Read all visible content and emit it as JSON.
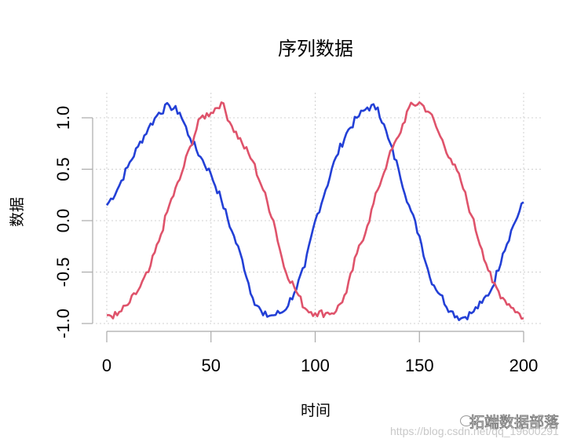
{
  "chart_data": {
    "type": "line",
    "title": "序列数据",
    "xlabel": "时间",
    "ylabel": "数据",
    "xlim": [
      0,
      200
    ],
    "ylim": [
      -1.0,
      1.2
    ],
    "x_ticks": [
      "0",
      "50",
      "100",
      "150",
      "200"
    ],
    "y_ticks": [
      "-1.0",
      "-0.5",
      "0.0",
      "0.5",
      "1.0"
    ],
    "grid": true,
    "grid_style": "dotted lightgray",
    "legend": null,
    "x": [
      0,
      5,
      10,
      15,
      20,
      25,
      30,
      35,
      40,
      45,
      50,
      55,
      60,
      65,
      70,
      75,
      80,
      85,
      90,
      95,
      100,
      105,
      110,
      115,
      120,
      125,
      130,
      135,
      140,
      145,
      150,
      155,
      160,
      165,
      170,
      175,
      180,
      185,
      190,
      195,
      200
    ],
    "series": [
      {
        "name": "blue series",
        "color": "#2340D6",
        "values": [
          0.15,
          0.3,
          0.52,
          0.72,
          0.9,
          1.05,
          1.12,
          1.05,
          0.8,
          0.62,
          0.45,
          0.2,
          -0.1,
          -0.38,
          -0.75,
          -0.92,
          -0.92,
          -0.88,
          -0.7,
          -0.45,
          0.0,
          0.3,
          0.62,
          0.85,
          1.0,
          1.1,
          1.1,
          0.8,
          0.5,
          0.15,
          -0.15,
          -0.55,
          -0.72,
          -0.88,
          -0.95,
          -0.9,
          -0.8,
          -0.65,
          -0.32,
          -0.05,
          0.18
        ]
      },
      {
        "name": "red series",
        "color": "#DF536B",
        "values": [
          -0.92,
          -0.92,
          -0.82,
          -0.68,
          -0.5,
          -0.2,
          0.15,
          0.4,
          0.72,
          1.0,
          1.05,
          1.15,
          0.92,
          0.75,
          0.58,
          0.3,
          0.0,
          -0.45,
          -0.65,
          -0.85,
          -0.9,
          -0.9,
          -0.88,
          -0.7,
          -0.32,
          -0.05,
          0.3,
          0.6,
          0.82,
          1.1,
          1.15,
          1.05,
          0.82,
          0.6,
          0.38,
          0.05,
          -0.28,
          -0.6,
          -0.75,
          -0.85,
          -0.95
        ]
      }
    ]
  },
  "watermark": {
    "brand": "拓端数据部落",
    "url": "https://blog.csdn.net/qq_19600291"
  }
}
